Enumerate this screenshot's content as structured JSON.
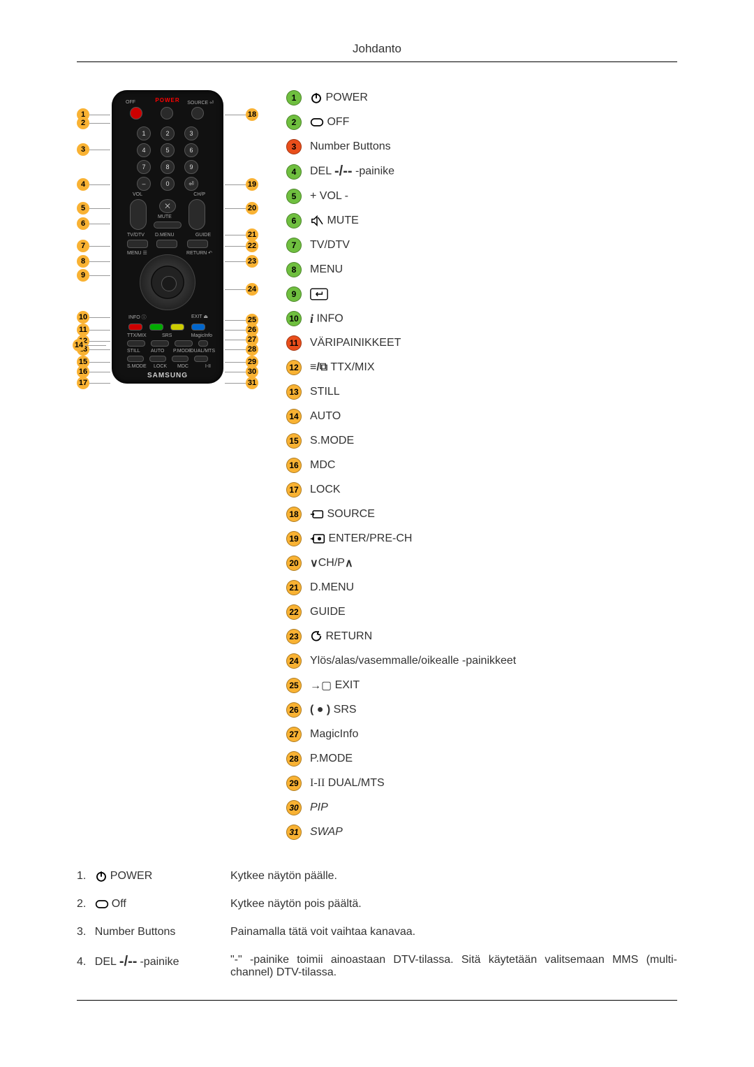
{
  "header": {
    "title": "Johdanto"
  },
  "badge_colors": {
    "green": {
      "bg": "#6fbf3f",
      "fg": "#000000"
    },
    "red": {
      "bg": "#e94e1b",
      "fg": "#000000"
    },
    "orange": {
      "bg": "#f9b233",
      "fg": "#000000"
    }
  },
  "remote": {
    "brand": "SAMSUNG",
    "power_label": "POWER",
    "left_callouts": [
      1,
      2,
      3,
      4,
      5,
      6,
      7,
      8,
      9,
      10,
      11,
      12,
      13,
      14,
      15,
      16,
      17
    ],
    "right_callouts": [
      18,
      19,
      20,
      21,
      22,
      23,
      24,
      25,
      26,
      27,
      28,
      29,
      30,
      31
    ],
    "callout_color": {
      "bg": "#f9b233",
      "fg": "#000000"
    }
  },
  "legend": [
    {
      "n": 1,
      "color": "green",
      "icon": "power",
      "label": "POWER"
    },
    {
      "n": 2,
      "color": "green",
      "icon": "off",
      "label": "OFF"
    },
    {
      "n": 3,
      "color": "red",
      "icon": null,
      "label": "Number Buttons"
    },
    {
      "n": 4,
      "color": "green",
      "icon": "del",
      "label_prefix": "DEL",
      "label_suffix": "-painike"
    },
    {
      "n": 5,
      "color": "green",
      "icon": null,
      "label": "+ VOL -"
    },
    {
      "n": 6,
      "color": "green",
      "icon": "mute",
      "label": "MUTE"
    },
    {
      "n": 7,
      "color": "green",
      "icon": null,
      "label": "TV/DTV"
    },
    {
      "n": 8,
      "color": "green",
      "icon": null,
      "label": "MENU"
    },
    {
      "n": 9,
      "color": "green",
      "icon": "enter",
      "label": ""
    },
    {
      "n": 10,
      "color": "green",
      "icon": "info",
      "label": "INFO"
    },
    {
      "n": 11,
      "color": "red",
      "icon": null,
      "label": "VÄRIPAINIKKEET"
    },
    {
      "n": 12,
      "color": "orange",
      "icon": "ttx",
      "label": "TTX/MIX"
    },
    {
      "n": 13,
      "color": "orange",
      "icon": null,
      "label": "STILL"
    },
    {
      "n": 14,
      "color": "orange",
      "icon": null,
      "label": "AUTO"
    },
    {
      "n": 15,
      "color": "orange",
      "icon": null,
      "label": "S.MODE"
    },
    {
      "n": 16,
      "color": "orange",
      "icon": null,
      "label": "MDC"
    },
    {
      "n": 17,
      "color": "orange",
      "icon": null,
      "label": "LOCK"
    },
    {
      "n": 18,
      "color": "orange",
      "icon": "source",
      "label": "SOURCE"
    },
    {
      "n": 19,
      "color": "orange",
      "icon": "prech",
      "label": "ENTER/PRE-CH"
    },
    {
      "n": 20,
      "color": "orange",
      "icon": "chp",
      "label": "CH/P"
    },
    {
      "n": 21,
      "color": "orange",
      "icon": null,
      "label": "D.MENU"
    },
    {
      "n": 22,
      "color": "orange",
      "icon": null,
      "label": "GUIDE"
    },
    {
      "n": 23,
      "color": "orange",
      "icon": "return",
      "label": "RETURN"
    },
    {
      "n": 24,
      "color": "orange",
      "icon": null,
      "label": "Ylös/alas/vasemmalle/oikealle -painikkeet"
    },
    {
      "n": 25,
      "color": "orange",
      "icon": "exit",
      "label": "EXIT"
    },
    {
      "n": 26,
      "color": "orange",
      "icon": "srs",
      "label": "SRS"
    },
    {
      "n": 27,
      "color": "orange",
      "icon": null,
      "label": "MagicInfo"
    },
    {
      "n": 28,
      "color": "orange",
      "icon": null,
      "label": "P.MODE"
    },
    {
      "n": 29,
      "color": "orange",
      "icon": "dual",
      "label": "DUAL/MTS"
    },
    {
      "n": 30,
      "color": "orange",
      "icon": null,
      "label": "PIP",
      "italic": true
    },
    {
      "n": 31,
      "color": "orange",
      "icon": null,
      "label": "SWAP",
      "italic": true
    }
  ],
  "descriptions": [
    {
      "n": "1.",
      "icon": "power",
      "name": "POWER",
      "text": "Kytkee näytön päälle."
    },
    {
      "n": "2.",
      "icon": "off",
      "name": "Off",
      "text": "Kytkee näytön pois päältä."
    },
    {
      "n": "3.",
      "icon": null,
      "name": "Number Buttons",
      "text": "Painamalla tätä voit vaihtaa kanavaa."
    },
    {
      "n": "4.",
      "icon": "del",
      "name_prefix": "DEL",
      "name_suffix": "-painike",
      "text": "\"-\" -painike toimii ainoastaan DTV-tilassa. Sitä käytetään valitsemaan MMS (multi-channel) DTV-tilassa."
    }
  ]
}
